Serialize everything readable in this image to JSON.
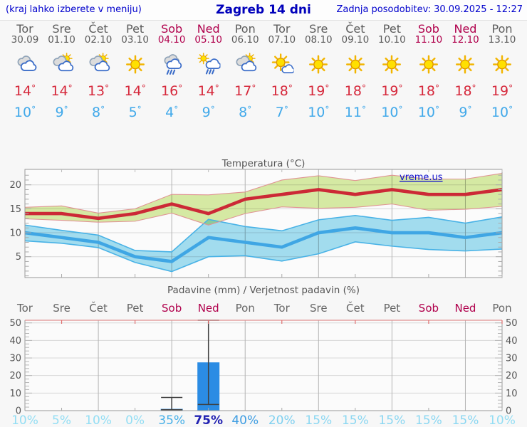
{
  "topbar": {
    "left_note": "(kraj lahko izberete v meniju)",
    "title": "Zagreb 14 dni",
    "updated": "Zadnja posodobitev: 30.09.2025 - 12:27"
  },
  "days": [
    {
      "name": "Tor",
      "date": "30.09",
      "weekend": false,
      "icon": "cloudy",
      "tmax_label": "14°",
      "tmin_label": "10°",
      "pop": "10%",
      "pop_color": "#93def4",
      "pop_strong": false
    },
    {
      "name": "Sre",
      "date": "01.10",
      "weekend": false,
      "icon": "partly-sunny",
      "tmax_label": "14°",
      "tmin_label": "9°",
      "pop": "5%",
      "pop_color": "#93def4",
      "pop_strong": false
    },
    {
      "name": "Čet",
      "date": "02.10",
      "weekend": false,
      "icon": "partly-sunny",
      "tmax_label": "13°",
      "tmin_label": "8°",
      "pop": "10%",
      "pop_color": "#93def4",
      "pop_strong": false
    },
    {
      "name": "Pet",
      "date": "03.10",
      "weekend": false,
      "icon": "sunny",
      "tmax_label": "14°",
      "tmin_label": "5°",
      "pop": "0%",
      "pop_color": "#93def4",
      "pop_strong": false
    },
    {
      "name": "Sob",
      "date": "04.10",
      "weekend": true,
      "icon": "rain",
      "tmax_label": "16°",
      "tmin_label": "4°",
      "pop": "35%",
      "pop_color": "#47b0e8",
      "pop_strong": false
    },
    {
      "name": "Ned",
      "date": "05.10",
      "weekend": true,
      "icon": "sun-rain",
      "tmax_label": "14°",
      "tmin_label": "9°",
      "pop": "75%",
      "pop_color": "#2222b2",
      "pop_strong": true
    },
    {
      "name": "Pon",
      "date": "06.10",
      "weekend": false,
      "icon": "partly-sunny",
      "tmax_label": "17°",
      "tmin_label": "8°",
      "pop": "40%",
      "pop_color": "#3e9de2",
      "pop_strong": false
    },
    {
      "name": "Tor",
      "date": "07.10",
      "weekend": false,
      "icon": "mostly-sunny",
      "tmax_label": "18°",
      "tmin_label": "7°",
      "pop": "20%",
      "pop_color": "#7ed0f0",
      "pop_strong": false
    },
    {
      "name": "Sre",
      "date": "08.10",
      "weekend": false,
      "icon": "sunny",
      "tmax_label": "19°",
      "tmin_label": "10°",
      "pop": "15%",
      "pop_color": "#8bd7f2",
      "pop_strong": false
    },
    {
      "name": "Čet",
      "date": "09.10",
      "weekend": false,
      "icon": "sunny",
      "tmax_label": "18°",
      "tmin_label": "11°",
      "pop": "15%",
      "pop_color": "#8bd7f2",
      "pop_strong": false
    },
    {
      "name": "Pet",
      "date": "10.10",
      "weekend": false,
      "icon": "sunny",
      "tmax_label": "19°",
      "tmin_label": "10°",
      "pop": "15%",
      "pop_color": "#8bd7f2",
      "pop_strong": false
    },
    {
      "name": "Sob",
      "date": "11.10",
      "weekend": true,
      "icon": "sunny",
      "tmax_label": "18°",
      "tmin_label": "10°",
      "pop": "15%",
      "pop_color": "#8bd7f2",
      "pop_strong": false
    },
    {
      "name": "Ned",
      "date": "12.10",
      "weekend": true,
      "icon": "sunny",
      "tmax_label": "18°",
      "tmin_label": "9°",
      "pop": "15%",
      "pop_color": "#8bd7f2",
      "pop_strong": false
    },
    {
      "name": "Pon",
      "date": "13.10",
      "weekend": false,
      "icon": "sunny",
      "tmax_label": "19°",
      "tmin_label": "10°",
      "pop": "10%",
      "pop_color": "#93def4",
      "pop_strong": false
    }
  ],
  "chart_data": [
    {
      "type": "line",
      "title": "Temperatura (°C)",
      "watermark": "vreme.us",
      "x_labels": [
        "Tor 30.09",
        "Sre 01.10",
        "Čet 02.10",
        "Pet 03.10",
        "Sob 04.10",
        "Ned 05.10",
        "Pon 06.10",
        "Tor 07.10",
        "Sre 08.10",
        "Čet 09.10",
        "Pet 10.10",
        "Sob 11.10",
        "Ned 12.10",
        "Pon 13.10"
      ],
      "yticks": [
        5,
        10,
        15,
        20
      ],
      "ylim": [
        0.65,
        23.2
      ],
      "grid": "on",
      "legend": "none",
      "series": [
        {
          "name": "tmax",
          "color": "#cc2936",
          "values": [
            14,
            14,
            13,
            14,
            16,
            14,
            17,
            18,
            19,
            18,
            19,
            18,
            18,
            19
          ]
        },
        {
          "name": "tmax_range_hi",
          "values": [
            15.3,
            15.6,
            14.1,
            15.0,
            18.0,
            17.9,
            18.5,
            21.0,
            21.9,
            20.9,
            22.0,
            21.2,
            21.2,
            22.4
          ]
        },
        {
          "name": "tmax_range_lo",
          "values": [
            12.9,
            12.6,
            12.2,
            12.4,
            14.1,
            11.6,
            14.0,
            15.4,
            15.1,
            15.3,
            16.0,
            14.7,
            14.9,
            15.5
          ]
        },
        {
          "name": "tmin",
          "color": "#3fa6e4",
          "values": [
            10,
            9,
            8,
            5,
            4,
            9,
            8,
            7,
            10,
            11,
            10,
            10,
            9,
            10
          ]
        },
        {
          "name": "tmin_range_hi",
          "values": [
            11.6,
            10.5,
            9.5,
            6.3,
            6.0,
            12.8,
            11.3,
            10.4,
            12.7,
            13.6,
            12.6,
            13.2,
            12.0,
            13.3
          ]
        },
        {
          "name": "tmin_range_lo",
          "values": [
            8.3,
            7.8,
            6.9,
            3.8,
            1.9,
            5.0,
            5.2,
            4.1,
            5.6,
            8.1,
            7.2,
            6.5,
            6.2,
            6.6
          ]
        }
      ]
    },
    {
      "type": "bar",
      "title": "Padavine (mm) / Verjetnost padavin (%)",
      "categories": [
        "Tor",
        "Sre",
        "Čet",
        "Pet",
        "Sob",
        "Ned",
        "Pon",
        "Tor",
        "Sre",
        "Čet",
        "Pet",
        "Sob",
        "Ned",
        "Pon"
      ],
      "values": [
        0,
        0,
        0,
        0,
        1,
        27.5,
        0,
        0,
        0,
        0,
        0,
        0,
        0,
        0
      ],
      "error_bars": [
        {
          "index": 4,
          "lo": 0.5,
          "hi": 7.5
        },
        {
          "index": 5,
          "lo": 3.5,
          "hi": 51.5
        }
      ],
      "probabilities_pct": [
        10,
        5,
        10,
        0,
        35,
        75,
        40,
        20,
        15,
        15,
        15,
        15,
        15,
        10
      ],
      "yticks": [
        0,
        10,
        20,
        30,
        40,
        50
      ],
      "ylim": [
        0,
        51.5
      ],
      "grid": "on"
    }
  ],
  "colors": {
    "link_blue": "#0000cc",
    "weekday_text": "#5c5c5c",
    "weekend_text": "#b0004c",
    "tmax_text": "#d6293c",
    "tmin_text": "#41a9ea",
    "line_red": "#cc2936",
    "line_blue": "#3fa6e4",
    "band_green": "#d9eda6",
    "band_green_edge": "#e09494",
    "band_blue": "#a5e0f2",
    "band_blue_edge": "#48b2e6",
    "bar_blue": "#2b8ce4",
    "whisker": "#3f3f3f",
    "grid_vertical": "#b3b3b3",
    "grid_horizontal": "#d8d8d8",
    "frame": "#999999",
    "precip_top_frame": "#e09090",
    "plot_bg": "#fbfbfb"
  }
}
